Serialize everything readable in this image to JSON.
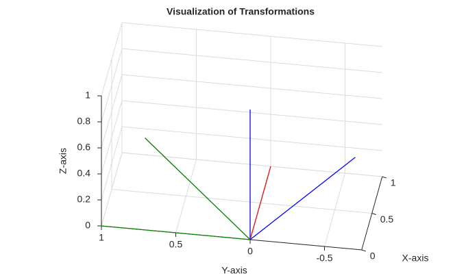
{
  "chart_data": {
    "type": "line3d",
    "title": "Visualization of Transformations",
    "xlabel": "X-axis",
    "ylabel": "Y-axis",
    "zlabel": "Z-axis",
    "xlim": [
      0,
      1
    ],
    "ylim": [
      -0.75,
      1
    ],
    "zlim": [
      0,
      1
    ],
    "xticks": [
      0,
      0.5,
      1
    ],
    "yticks": [
      -0.5,
      0,
      0.5,
      1
    ],
    "zticks": [
      0,
      0.2,
      0.4,
      0.6,
      0.8,
      1
    ],
    "grid": true,
    "series": [
      {
        "color": "#d62728",
        "x": [
          0,
          1
        ],
        "y": [
          0,
          0
        ],
        "z": [
          0,
          0
        ]
      },
      {
        "color": "#008000",
        "x": [
          0,
          0
        ],
        "y": [
          0,
          1
        ],
        "z": [
          0,
          0
        ]
      },
      {
        "color": "#0000ff",
        "x": [
          0,
          0
        ],
        "y": [
          0,
          0
        ],
        "z": [
          0,
          1
        ]
      },
      {
        "color": "#d62728",
        "x": [
          0,
          1
        ],
        "y": [
          0,
          0
        ],
        "z": [
          0,
          0
        ]
      },
      {
        "color": "#008000",
        "x": [
          0,
          0
        ],
        "y": [
          0,
          0.7071
        ],
        "z": [
          0,
          0.7071
        ]
      },
      {
        "color": "#0000ff",
        "x": [
          0,
          0
        ],
        "y": [
          0,
          -0.7071
        ],
        "z": [
          0,
          0.7071
        ]
      }
    ]
  }
}
